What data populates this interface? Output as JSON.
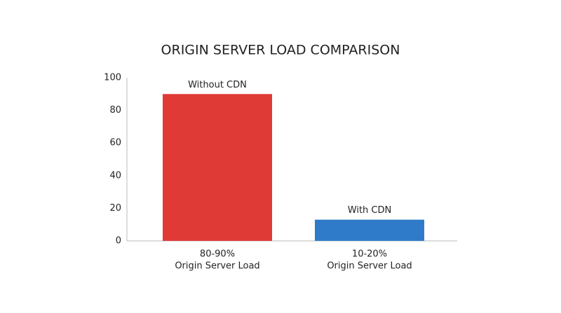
{
  "chart_data": {
    "type": "bar",
    "title": "ORIGIN SERVER LOAD COMPARISON",
    "categories": [
      [
        "80-90%",
        "Origin Server Load"
      ],
      [
        "10-20%",
        "Origin Server Load"
      ]
    ],
    "bar_labels": [
      "Without CDN",
      "With CDN"
    ],
    "values": [
      90,
      13
    ],
    "colors": [
      "#e03a37",
      "#2f7bc9"
    ],
    "ylim": [
      0,
      100
    ],
    "yticks": [
      0,
      20,
      40,
      60,
      80,
      100
    ],
    "grid": false
  }
}
